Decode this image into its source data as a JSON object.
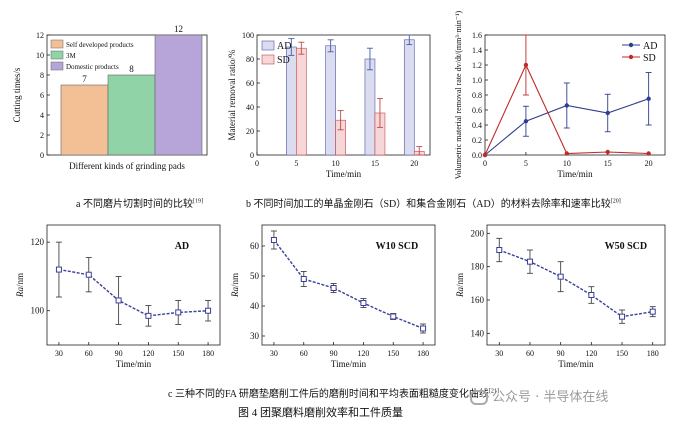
{
  "figure_caption": "图 4   团聚磨料磨削效率和工件质量",
  "watermark": "公众号 · 半导体在线",
  "chart_data": [
    {
      "id": "a",
      "type": "bar",
      "caption": "a  不同磨片切割时间的比较",
      "caption_ref": "[19]",
      "ylabel": "Cutting times/s",
      "xlabel": "Different kinds of grinding pads",
      "ylim": [
        0,
        12
      ],
      "yticks": [
        0,
        2,
        4,
        6,
        8,
        10,
        12
      ],
      "legend_position": "top-left",
      "series": [
        {
          "name": "Self developed products",
          "value": 7,
          "color": "#f3c096"
        },
        {
          "name": "3M",
          "value": 8,
          "color": "#8fd3a6"
        },
        {
          "name": "Domestic products",
          "value": 12,
          "color": "#b7a4d8"
        }
      ]
    },
    {
      "id": "b1",
      "type": "bar",
      "ylabel": "Material removal ratio/%",
      "xlabel": "Time/min",
      "ylim": [
        0,
        100
      ],
      "yticks": [
        0,
        20,
        40,
        60,
        80,
        100
      ],
      "categories": [
        5,
        10,
        15,
        20
      ],
      "xticks": [
        0,
        5,
        10,
        15,
        20
      ],
      "xlim": [
        0,
        22
      ],
      "legend_position": "top-left",
      "series": [
        {
          "name": "AD",
          "values": [
            90,
            91,
            80,
            96
          ],
          "errors": [
            7,
            5,
            9,
            4
          ],
          "color": "#4a5aa8",
          "fill": "#dcdcf0"
        },
        {
          "name": "SD",
          "values": [
            89,
            29,
            35,
            3
          ],
          "errors": [
            5,
            8,
            12,
            4
          ],
          "color": "#c24a4a",
          "fill": "#f6d6d6"
        }
      ]
    },
    {
      "id": "b2",
      "type": "line",
      "caption": "b  不同时间加工的单晶金刚石（SD）和集合金刚石（AD）的材料去除率和速率比较",
      "caption_ref": "[20]",
      "ylabel": "Volumetric material removal rate dv/dt/(mm³·min⁻¹)",
      "xlabel": "Time/min",
      "ylim": [
        0,
        1.6
      ],
      "yticks": [
        0,
        0.2,
        0.4,
        0.6,
        0.8,
        1.0,
        1.2,
        1.4,
        1.6
      ],
      "xlim": [
        0,
        22
      ],
      "xticks": [
        0,
        5,
        10,
        15,
        20
      ],
      "legend_position": "top-right",
      "series": [
        {
          "name": "AD",
          "x": [
            0,
            5,
            10,
            15,
            20
          ],
          "y": [
            0,
            0.45,
            0.66,
            0.56,
            0.75
          ],
          "errors": [
            0,
            0.2,
            0.3,
            0.25,
            0.35
          ],
          "color": "#2e3f8f"
        },
        {
          "name": "SD",
          "x": [
            0,
            5,
            10,
            15,
            20
          ],
          "y": [
            0,
            1.2,
            0.02,
            0.04,
            0.02
          ],
          "errors": [
            0,
            0.4,
            0.02,
            0.02,
            0.02
          ],
          "color": "#c02a2a"
        }
      ]
    },
    {
      "id": "c1",
      "type": "line",
      "annotation": "AD",
      "ylabel": "Ra/nm",
      "xlabel": "Time/min",
      "ylim": [
        90,
        125
      ],
      "yticks": [
        100,
        120
      ],
      "xlim": [
        18,
        192
      ],
      "xticks": [
        30,
        60,
        90,
        120,
        150,
        180
      ],
      "series": [
        {
          "x": [
            30,
            60,
            90,
            120,
            150,
            180
          ],
          "y": [
            112,
            110.5,
            103,
            98.5,
            99.5,
            100
          ],
          "errors": [
            8,
            5,
            7,
            3,
            3.5,
            3
          ],
          "color": "#3a3f9a"
        }
      ]
    },
    {
      "id": "c2",
      "type": "line",
      "annotation": "W10 SCD",
      "ylabel": "Ra/nm",
      "xlabel": "Time/min",
      "ylim": [
        27,
        67
      ],
      "yticks": [
        30,
        40,
        50,
        60
      ],
      "xlim": [
        18,
        192
      ],
      "xticks": [
        30,
        60,
        90,
        120,
        150,
        180
      ],
      "series": [
        {
          "x": [
            30,
            60,
            90,
            120,
            150,
            180
          ],
          "y": [
            62,
            49,
            46,
            41,
            36.5,
            32.5
          ],
          "errors": [
            3,
            2.5,
            1.5,
            1.5,
            1,
            1.5
          ],
          "color": "#3a3f9a"
        }
      ]
    },
    {
      "id": "c3",
      "type": "line",
      "annotation": "W50 SCD",
      "ylabel": "Ra/nm",
      "xlabel": "Time/min",
      "ylim": [
        133,
        205
      ],
      "yticks": [
        140,
        160,
        180,
        200
      ],
      "xlim": [
        18,
        192
      ],
      "xticks": [
        30,
        60,
        90,
        120,
        150,
        180
      ],
      "series": [
        {
          "x": [
            30,
            60,
            90,
            120,
            150,
            180
          ],
          "y": [
            190,
            183,
            174,
            163,
            150,
            153
          ],
          "errors": [
            7,
            7,
            9,
            5,
            4,
            3
          ],
          "color": "#3a3f9a"
        }
      ]
    }
  ],
  "row_c_caption": "c  三种不同的FA 研磨垫磨削工件后的磨削时间和平均表面粗糙度变化曲线",
  "row_c_caption_ref": "[21]"
}
